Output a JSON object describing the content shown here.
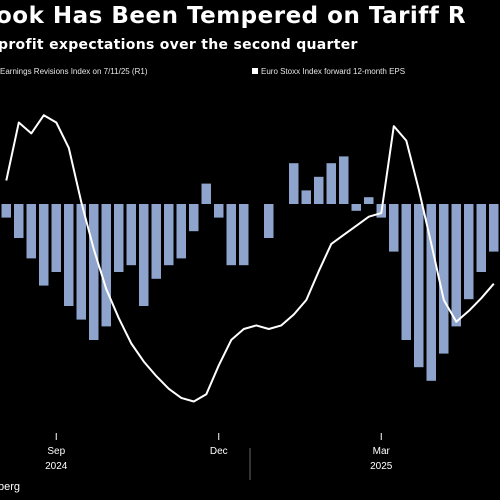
{
  "header": {
    "title": "ook Has Been Tempered on Tariff R",
    "subtitle": "profit expectations over the second quarter"
  },
  "legend": {
    "series1": "Earnings Revisions Index on 7/11/25 (R1)",
    "series2": "Euro Stoxx Index forward 12-month EPS"
  },
  "source": "berg",
  "colors": {
    "background": "#000000",
    "bar": "#8ea4cc",
    "line": "#ffffff"
  },
  "chart_data": {
    "type": "bar+line",
    "x_ticks": [
      {
        "label": "Sep",
        "year": "2024",
        "position": 4
      },
      {
        "label": "Dec",
        "year": "",
        "position": 17
      },
      {
        "label": "Mar",
        "year": "2025",
        "position": 30
      }
    ],
    "series": [
      {
        "type": "bar",
        "values": [
          -2.0,
          -5.0,
          -8.0,
          -12.0,
          -10.0,
          -15.0,
          -17.0,
          -20.0,
          -18.0,
          -10.0,
          -9.0,
          -15.0,
          -11.0,
          -9.0,
          -8.0,
          -4.0,
          3.0,
          -2.0,
          -9.0,
          -9.0,
          0.0,
          -5.0,
          0.0,
          6.0,
          2.0,
          4.0,
          6.0,
          7.0,
          -1.0,
          1.0,
          -2.0,
          -7.0,
          -20.0,
          -24.0,
          -26.0,
          -22.0,
          -18.0,
          -14.0,
          -10.0,
          -7.0
        ]
      },
      {
        "type": "line",
        "values": [
          0.3,
          0.62,
          0.56,
          0.66,
          0.62,
          0.48,
          0.18,
          -0.08,
          -0.3,
          -0.46,
          -0.6,
          -0.7,
          -0.78,
          -0.85,
          -0.9,
          -0.92,
          -0.88,
          -0.72,
          -0.58,
          -0.52,
          -0.5,
          -0.52,
          -0.5,
          -0.44,
          -0.36,
          -0.2,
          -0.05,
          0.0,
          0.05,
          0.1,
          0.12,
          0.6,
          0.52,
          0.25,
          -0.05,
          -0.36,
          -0.48,
          -0.42,
          -0.35,
          -0.27
        ]
      }
    ]
  }
}
